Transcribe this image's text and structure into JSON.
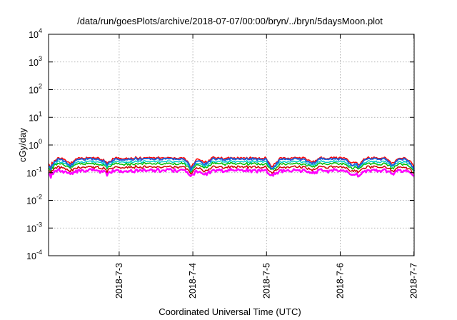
{
  "chart_data": {
    "type": "line",
    "title": "/data/run/goesPlots/archive/2018-07-07/00:00/bryn/../bryn/5daysMoon.plot",
    "xlabel": "Coordinated Universal Time (UTC)",
    "ylabel": "cGy/day",
    "y_scale": "log",
    "ylim": [
      0.0001,
      10000
    ],
    "xlim": [
      "2018-07-02T01:00",
      "2018-07-07T00:05"
    ],
    "grid": true,
    "y_ticks": [
      {
        "value": 0.0001,
        "base": "10",
        "exp": "-4"
      },
      {
        "value": 0.001,
        "base": "10",
        "exp": "-3"
      },
      {
        "value": 0.01,
        "base": "10",
        "exp": "-2"
      },
      {
        "value": 0.1,
        "base": "10",
        "exp": "-1"
      },
      {
        "value": 1,
        "base": "10",
        "exp": "0"
      },
      {
        "value": 10,
        "base": "10",
        "exp": "1"
      },
      {
        "value": 100,
        "base": "10",
        "exp": "2"
      },
      {
        "value": 1000,
        "base": "10",
        "exp": "3"
      },
      {
        "value": 10000,
        "base": "10",
        "exp": "4"
      }
    ],
    "x_ticks": [
      {
        "value": "2018-07-03T00:00",
        "label": "2018-7-3"
      },
      {
        "value": "2018-07-04T00:00",
        "label": "2018-7-4"
      },
      {
        "value": "2018-07-05T00:00",
        "label": "2018-7-5"
      },
      {
        "value": "2018-07-06T00:00",
        "label": "2018-7-6"
      },
      {
        "value": "2018-07-07T00:00",
        "label": "2018-7-7"
      }
    ],
    "series": [
      {
        "color": "#ff00ff",
        "level": 0.12,
        "variability": 0.16,
        "width": 2.5
      },
      {
        "color": "#cc0000",
        "level": 0.16,
        "variability": 0.12,
        "width": 1.5
      },
      {
        "color": "#00bb00",
        "level": 0.21,
        "variability": 0.11,
        "width": 1.5
      },
      {
        "color": "#00cccc",
        "level": 0.25,
        "variability": 0.1,
        "width": 1.5
      },
      {
        "color": "#ff0000",
        "level": 0.34,
        "variability": 0.1,
        "width": 1.5
      },
      {
        "color": "#1f5fd6",
        "level": 0.31,
        "variability": 0.1,
        "width": 2
      }
    ],
    "dips": [
      {
        "x": "2018-07-02T01:30",
        "depth": 0.55
      },
      {
        "x": "2018-07-02T08:00",
        "depth": 0.45
      },
      {
        "x": "2018-07-02T20:00",
        "depth": 0.35
      },
      {
        "x": "2018-07-03T23:30",
        "depth": 0.55
      },
      {
        "x": "2018-07-04T04:00",
        "depth": 0.35
      },
      {
        "x": "2018-07-05T02:00",
        "depth": 0.6
      },
      {
        "x": "2018-07-05T15:00",
        "depth": 0.35
      },
      {
        "x": "2018-07-06T04:00",
        "depth": 0.4
      },
      {
        "x": "2018-07-06T06:00",
        "depth": 0.45
      },
      {
        "x": "2018-07-06T17:00",
        "depth": 0.35
      },
      {
        "x": "2018-07-07T00:00",
        "depth": 0.55
      }
    ]
  }
}
